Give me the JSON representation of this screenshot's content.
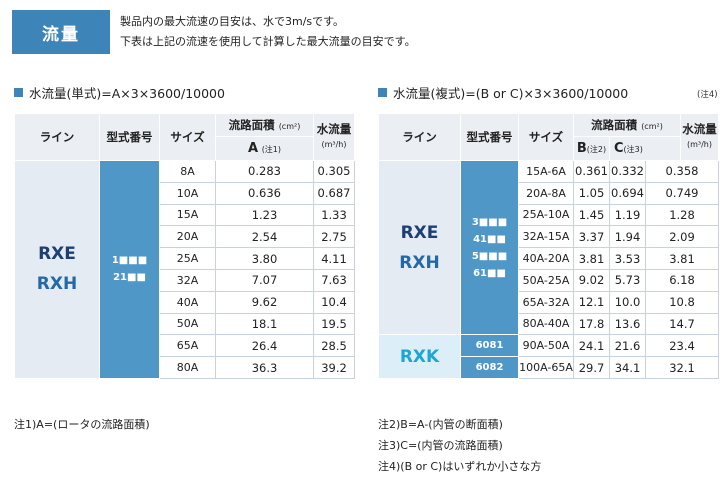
{
  "header": {
    "title": "流量",
    "intro1": "製品内の最大流速の目安は、水で3m/sです。",
    "intro2": "下表は上記の流速を使用して計算した最大流量の目安です。"
  },
  "single": {
    "heading": "水流量(単式)=A×3×3600/10000",
    "cols": {
      "line": "ライン",
      "model": "型式番号",
      "size": "サイズ",
      "area": "流路面積",
      "area_unit": "(cm²)",
      "flow": "水流量",
      "flow_unit": "(m³/h)",
      "a": "A",
      "a_note": "(注1)"
    },
    "line1": "RXE",
    "line2": "RXH",
    "model1": "1■■■",
    "model2": "21■■",
    "rows": [
      {
        "size": "8A",
        "a": "0.283",
        "flow": "0.305"
      },
      {
        "size": "10A",
        "a": "0.636",
        "flow": "0.687"
      },
      {
        "size": "15A",
        "a": "1.23",
        "flow": "1.33"
      },
      {
        "size": "20A",
        "a": "2.54",
        "flow": "2.75"
      },
      {
        "size": "25A",
        "a": "3.80",
        "flow": "4.11"
      },
      {
        "size": "32A",
        "a": "7.07",
        "flow": "7.63"
      },
      {
        "size": "40A",
        "a": "9.62",
        "flow": "10.4"
      },
      {
        "size": "50A",
        "a": "18.1",
        "flow": "19.5"
      },
      {
        "size": "65A",
        "a": "26.4",
        "flow": "28.5"
      },
      {
        "size": "80A",
        "a": "36.3",
        "flow": "39.2"
      }
    ]
  },
  "double": {
    "heading": "水流量(複式)=(B or C)×3×3600/10000",
    "note": "(注4)",
    "cols": {
      "line": "ライン",
      "model": "型式番号",
      "size": "サイズ",
      "area": "流路面積",
      "area_unit": "(cm²)",
      "flow": "水流量",
      "flow_unit": "(m³/h)",
      "b": "B",
      "b_note": "(注2)",
      "c": "C",
      "c_note": "(注3)"
    },
    "line1": "RXE",
    "line2": "RXH",
    "line3": "RXK",
    "models": [
      "3■■■",
      "41■■",
      "5■■■",
      "61■■"
    ],
    "model_k1": "6081",
    "model_k2": "6082",
    "rows": [
      {
        "size": "15A-6A",
        "b": "0.361",
        "c": "0.332",
        "flow": "0.358"
      },
      {
        "size": "20A-8A",
        "b": "1.05",
        "c": "0.694",
        "flow": "0.749"
      },
      {
        "size": "25A-10A",
        "b": "1.45",
        "c": "1.19",
        "flow": "1.28"
      },
      {
        "size": "32A-15A",
        "b": "3.37",
        "c": "1.94",
        "flow": "2.09"
      },
      {
        "size": "40A-20A",
        "b": "3.81",
        "c": "3.53",
        "flow": "3.81"
      },
      {
        "size": "50A-25A",
        "b": "9.02",
        "c": "5.73",
        "flow": "6.18"
      },
      {
        "size": "65A-32A",
        "b": "12.1",
        "c": "10.0",
        "flow": "10.8"
      },
      {
        "size": "80A-40A",
        "b": "17.8",
        "c": "13.6",
        "flow": "14.7"
      },
      {
        "size": "90A-50A",
        "b": "24.1",
        "c": "21.6",
        "flow": "23.4"
      },
      {
        "size": "100A-65A",
        "b": "29.7",
        "c": "34.1",
        "flow": "32.1"
      }
    ]
  },
  "footnotes": {
    "n1": "注1)A=(ロータの流路面積)",
    "n2": "注2)B=A-(内管の断面積)",
    "n3": "注3)C=(内管の流路面積)",
    "n4": "注4)(B or C)はいずれか小さな方"
  }
}
